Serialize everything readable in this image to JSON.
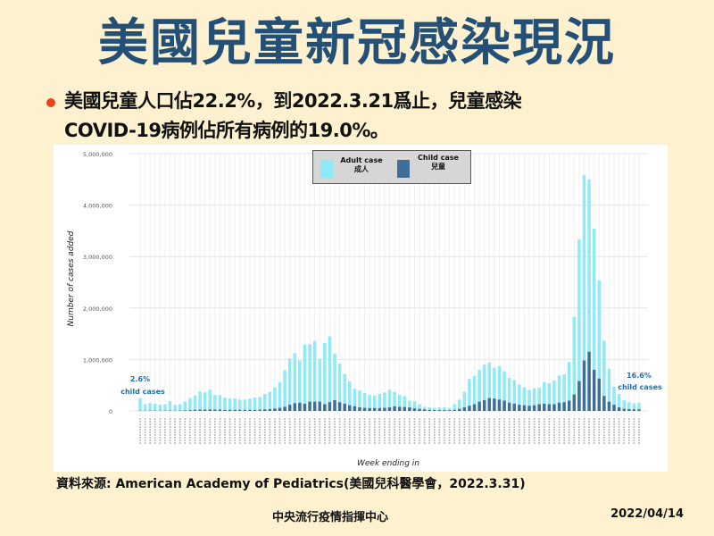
{
  "title": "美國兒童新冠感染現況",
  "bullet": {
    "line1": "美國兒童人口佔22.2%，到2022.3.21爲止，兒童感染",
    "line2": "COVID-19病例佔所有病例的19.0%。"
  },
  "source": "資料來源: American Academy of Pediatrics(美國兒科醫學會，2022.3.31)",
  "footer": {
    "org": "中央流行疫情指揮中心",
    "date": "2022/04/14"
  },
  "colors": {
    "adult": "#8feaf8",
    "child": "#3f6e99",
    "title": "#245078",
    "annotation": "#1f6fb0"
  },
  "chart_data": {
    "type": "bar",
    "stacking": "overlay",
    "xlabel": "Week ending in",
    "ylabel": "Number of cases added",
    "ylim": [
      0,
      5000000
    ],
    "yticks": [
      0,
      1000000,
      2000000,
      3000000,
      4000000,
      5000000
    ],
    "ytick_labels": [
      "0",
      "1,000,000",
      "2,000,000",
      "3,000,000",
      "4,000,000",
      "5,000,000"
    ],
    "grid": true,
    "legend": {
      "placement": "top-center",
      "entries": [
        {
          "label": "Adult case",
          "label_zh": "成人"
        },
        {
          "label": "Child case",
          "label_zh": "兒童"
        }
      ]
    },
    "annotations": [
      {
        "pct": "2.6%",
        "text": "child cases",
        "position": "start"
      },
      {
        "pct": "16.6%",
        "text": "child cases",
        "position": "end"
      }
    ],
    "series": [
      {
        "name": "All cases (Adult case bar)",
        "values": [
          250,
          130,
          150,
          140,
          120,
          130,
          190,
          120,
          130,
          180,
          250,
          300,
          380,
          360,
          410,
          310,
          310,
          260,
          240,
          240,
          220,
          220,
          240,
          260,
          270,
          330,
          370,
          460,
          560,
          790,
          1020,
          1120,
          980,
          1290,
          1300,
          1360,
          1010,
          1320,
          1450,
          1110,
          920,
          720,
          570,
          430,
          400,
          350,
          310,
          300,
          330,
          360,
          410,
          370,
          310,
          290,
          200,
          190,
          130,
          80,
          70,
          60,
          70,
          70,
          60,
          130,
          220,
          370,
          620,
          680,
          800,
          900,
          940,
          840,
          870,
          770,
          640,
          600,
          510,
          460,
          410,
          440,
          450,
          560,
          540,
          590,
          690,
          710,
          950,
          1830,
          3330,
          4580,
          4500,
          3540,
          2540,
          1370,
          820,
          470,
          330,
          210,
          170,
          150,
          160
        ],
        "unit": "thousands"
      },
      {
        "name": "Child case",
        "values": [
          5,
          4,
          5,
          5,
          5,
          5,
          8,
          5,
          6,
          10,
          15,
          20,
          25,
          25,
          30,
          25,
          25,
          20,
          20,
          20,
          20,
          20,
          20,
          20,
          25,
          30,
          35,
          45,
          60,
          80,
          120,
          150,
          160,
          140,
          180,
          180,
          180,
          130,
          170,
          210,
          170,
          140,
          110,
          90,
          70,
          60,
          55,
          55,
          55,
          60,
          70,
          90,
          80,
          75,
          70,
          50,
          40,
          30,
          20,
          15,
          15,
          15,
          15,
          20,
          40,
          70,
          100,
          130,
          180,
          210,
          250,
          240,
          220,
          200,
          160,
          140,
          120,
          110,
          100,
          110,
          130,
          140,
          130,
          130,
          160,
          170,
          200,
          320,
          580,
          980,
          1150,
          800,
          630,
          290,
          180,
          120,
          70,
          40,
          35,
          30,
          30
        ],
        "unit": "thousands"
      }
    ]
  }
}
